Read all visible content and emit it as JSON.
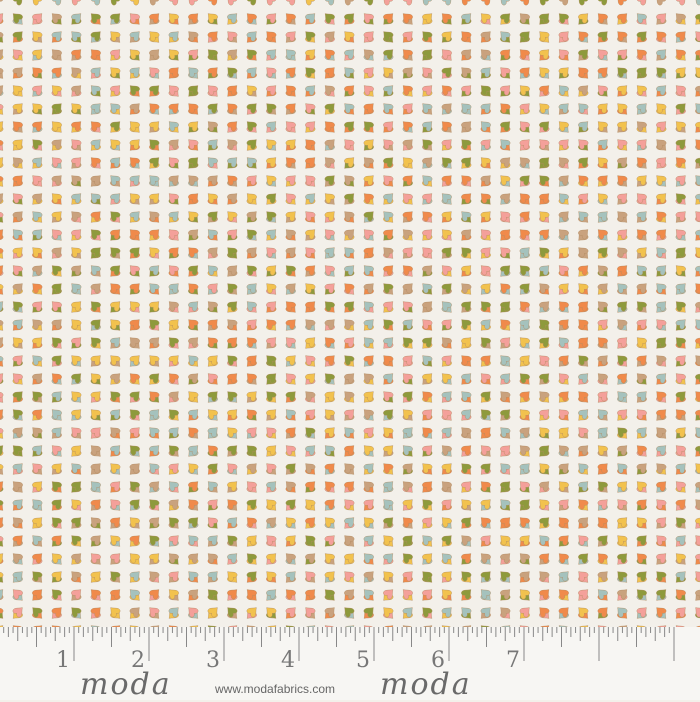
{
  "palette": [
    "#f08a4b",
    "#f4a09a",
    "#8e9a3c",
    "#a5c2bd",
    "#f2c24e",
    "#c9a27e"
  ],
  "ruler": {
    "numbers": [
      "1",
      "2",
      "3",
      "4",
      "5",
      "6",
      "7"
    ],
    "brand": "moda",
    "url": "www.modafabrics.com"
  }
}
